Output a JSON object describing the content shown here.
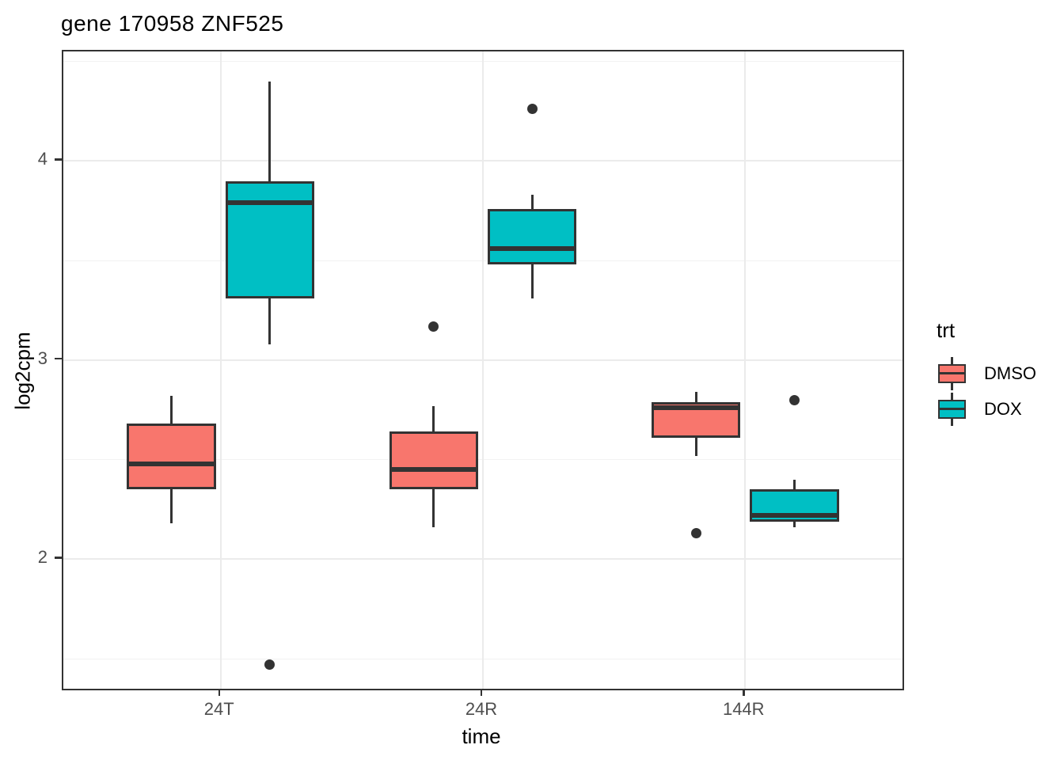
{
  "chart_data": {
    "type": "boxplot",
    "title": "gene 170958 ZNF525",
    "xlabel": "time",
    "ylabel": "log2cpm",
    "categories": [
      "24T",
      "24R",
      "144R"
    ],
    "series": [
      {
        "name": "DMSO",
        "color": "#F8766D",
        "boxes": [
          {
            "category": "24T",
            "whisker_low": 2.18,
            "q1": 2.35,
            "median": 2.48,
            "q3": 2.68,
            "whisker_high": 2.82,
            "outliers": []
          },
          {
            "category": "24R",
            "whisker_low": 2.16,
            "q1": 2.35,
            "median": 2.45,
            "q3": 2.64,
            "whisker_high": 2.77,
            "outliers": [
              3.17
            ]
          },
          {
            "category": "144R",
            "whisker_low": 2.52,
            "q1": 2.61,
            "median": 2.76,
            "q3": 2.79,
            "whisker_high": 2.84,
            "outliers": [
              2.13
            ]
          }
        ]
      },
      {
        "name": "DOX",
        "color": "#00BFC4",
        "boxes": [
          {
            "category": "24T",
            "whisker_low": 3.08,
            "q1": 3.31,
            "median": 3.79,
            "q3": 3.9,
            "whisker_high": 4.4,
            "outliers": [
              1.47
            ]
          },
          {
            "category": "24R",
            "whisker_low": 3.31,
            "q1": 3.48,
            "median": 3.56,
            "q3": 3.76,
            "whisker_high": 3.83,
            "outliers": [
              4.26
            ]
          },
          {
            "category": "144R",
            "whisker_low": 2.16,
            "q1": 2.19,
            "median": 2.22,
            "q3": 2.35,
            "whisker_high": 2.4,
            "outliers": [
              2.8
            ]
          }
        ]
      }
    ],
    "y_axis": {
      "ticks": [
        2,
        3,
        4
      ],
      "minor_ticks": [
        1.5,
        2.5,
        3.5,
        4.5
      ],
      "ylim": [
        1.35,
        4.55
      ]
    },
    "legend": {
      "title": "trt",
      "position": "right",
      "entries": [
        "DMSO",
        "DOX"
      ]
    },
    "grid": true,
    "colors": {
      "stroke": "#333333",
      "grid_major": "#EBEBEB",
      "grid_minor": "#F2F2F2",
      "tick_label": "#4D4D4D",
      "panel_border": "#333333",
      "background": "#FFFFFF"
    }
  }
}
